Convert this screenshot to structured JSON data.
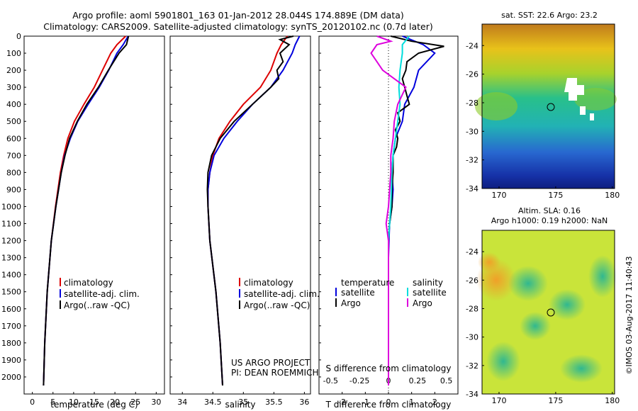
{
  "header": {
    "line1": "Argo profile: aoml 5901801_163 01-Jan-2012 28.044S 174.889E (DM data)",
    "line2": "Climatology: CARS2009. Satellite-adjusted climatology: synTS_20120102.nc (0.7d later)"
  },
  "colors": {
    "climatology": "#dd0000",
    "satellite": "#0000dd",
    "argo": "#000000",
    "sat_salinity": "#00dddd",
    "argo_salinity": "#dd00dd"
  },
  "legend": {
    "climatology": "climatology",
    "satellite": "satellite-adj. clim.",
    "argo": "Argo(..raw -QC)"
  },
  "legend3": {
    "temp_title": "temperature",
    "sal_title": "salinity",
    "satellite": "satellite",
    "argo": "Argo"
  },
  "credits": {
    "project": "US ARGO PROJECT",
    "pi": "PI: DEAN ROEMMICH",
    "imos": "©IMOS 03-Aug-2017 11:40:43"
  },
  "maps": {
    "sst_title": "sat. SST: 22.6 Argo: 23.2",
    "sla_title1": "Altim. SLA: 0.16",
    "sla_title2": "Argo h1000: 0.19 h2000: NaN",
    "yticks": [
      "-24",
      "-26",
      "-28",
      "-30",
      "-32",
      "-34"
    ],
    "xticks": [
      "170",
      "175",
      "180"
    ]
  },
  "chart_data": [
    {
      "type": "line",
      "xlabel": "temperature (deg C)",
      "xlim": [
        -2,
        32
      ],
      "ylim": [
        0,
        2100
      ],
      "xticks": [
        "0",
        "5",
        "10",
        "15",
        "20",
        "25",
        "30"
      ],
      "yticks": [
        "0",
        "100",
        "200",
        "300",
        "400",
        "500",
        "600",
        "700",
        "800",
        "900",
        "1000",
        "1100",
        "1200",
        "1300",
        "1400",
        "1500",
        "1600",
        "1700",
        "1800",
        "1900",
        "2000"
      ],
      "series": [
        {
          "name": "climatology",
          "depth": [
            0,
            50,
            100,
            200,
            300,
            400,
            500,
            600,
            700,
            800,
            1000,
            1200,
            1500,
            1800,
            2050
          ],
          "values": [
            22.6,
            20.5,
            19.0,
            17.0,
            15.0,
            12.5,
            10.2,
            8.6,
            7.6,
            6.8,
            5.6,
            4.6,
            3.6,
            3.0,
            2.7
          ]
        },
        {
          "name": "satellite-adj. clim.",
          "depth": [
            0,
            50,
            100,
            200,
            300,
            400,
            500,
            600,
            700,
            800,
            1000,
            1200,
            1500,
            1800,
            2050
          ],
          "values": [
            23.2,
            22.0,
            20.5,
            18.5,
            16.2,
            13.5,
            11.0,
            9.2,
            7.8,
            7.0,
            5.7,
            4.6,
            3.6,
            3.0,
            2.7
          ]
        },
        {
          "name": "Argo(..raw -QC)",
          "depth": [
            0,
            50,
            100,
            200,
            300,
            400,
            500,
            600,
            700,
            800,
            1000,
            1200,
            1500,
            1800,
            2050
          ],
          "values": [
            23.3,
            22.8,
            21.0,
            18.4,
            16.0,
            13.2,
            10.9,
            9.0,
            7.9,
            7.0,
            5.7,
            4.6,
            3.6,
            3.0,
            2.7
          ]
        }
      ]
    },
    {
      "type": "line",
      "xlabel": "salinity",
      "xlim": [
        33.8,
        36.1
      ],
      "ylim": [
        0,
        2100
      ],
      "xticks": [
        "34",
        "34.5",
        "35",
        "35.5",
        "36"
      ],
      "series": [
        {
          "name": "climatology",
          "depth": [
            0,
            50,
            100,
            200,
            300,
            400,
            500,
            600,
            700,
            800,
            900,
            1000,
            1200,
            1500,
            1800,
            2050
          ],
          "values": [
            35.72,
            35.62,
            35.55,
            35.45,
            35.28,
            35.0,
            34.78,
            34.6,
            34.5,
            34.45,
            34.42,
            34.42,
            34.45,
            34.55,
            34.62,
            34.66
          ]
        },
        {
          "name": "satellite-adj. clim.",
          "depth": [
            0,
            50,
            100,
            200,
            300,
            400,
            500,
            600,
            700,
            800,
            900,
            1000,
            1200,
            1500,
            1800,
            2050
          ],
          "values": [
            35.92,
            35.85,
            35.8,
            35.65,
            35.45,
            35.15,
            34.9,
            34.68,
            34.52,
            34.45,
            34.42,
            34.42,
            34.45,
            34.55,
            34.62,
            34.66
          ]
        },
        {
          "name": "Argo(..raw -QC)",
          "depth": [
            0,
            20,
            50,
            100,
            150,
            200,
            250,
            300,
            400,
            500,
            600,
            700,
            800,
            900,
            1000,
            1200,
            1500,
            1800,
            2050
          ],
          "values": [
            35.82,
            35.6,
            35.75,
            35.6,
            35.65,
            35.55,
            35.58,
            35.45,
            35.15,
            34.85,
            34.62,
            34.48,
            34.42,
            34.41,
            34.42,
            34.45,
            34.55,
            34.62,
            34.66
          ]
        }
      ]
    },
    {
      "type": "line",
      "xlabel": "T difference from climatology",
      "x2label": "S difference from climatology",
      "xlim": [
        -3,
        3
      ],
      "ylim": [
        0,
        2100
      ],
      "xticks": [
        "-2",
        "-1",
        "0",
        "1",
        "2"
      ],
      "x2ticks": [
        "-0.5",
        "-0.25",
        "0",
        "0.25",
        "0.5"
      ],
      "series": [
        {
          "name": "temperature satellite",
          "depth": [
            0,
            50,
            100,
            200,
            300,
            400,
            500,
            600,
            700,
            800,
            900,
            1000,
            1100,
            1200,
            1300,
            1500,
            1700,
            2050
          ],
          "values": [
            0.6,
            1.5,
            2.0,
            1.3,
            1.1,
            0.7,
            0.6,
            0.3,
            0.2,
            0.15,
            0.2,
            0.15,
            0.05,
            0.02,
            0.0,
            0.0,
            0.0,
            0.0
          ]
        },
        {
          "name": "temperature Argo",
          "depth": [
            0,
            30,
            60,
            100,
            150,
            200,
            250,
            300,
            350,
            400,
            450,
            500,
            550,
            600,
            650,
            700,
            800,
            900,
            1000,
            1100,
            1200,
            1300,
            1500,
            1700,
            2050
          ],
          "values": [
            0.1,
            1.0,
            2.4,
            1.3,
            0.8,
            0.75,
            0.6,
            0.7,
            0.8,
            0.9,
            0.4,
            0.5,
            0.3,
            0.4,
            0.35,
            0.2,
            0.2,
            0.15,
            0.15,
            0.05,
            0.0,
            0.0,
            0.0,
            0.0,
            0.0
          ]
        },
        {
          "name": "salinity satellite",
          "depth": [
            0,
            50,
            100,
            200,
            300,
            400,
            500,
            600,
            700,
            800,
            1000,
            1200,
            1500,
            1800,
            2050
          ],
          "values": [
            0.18,
            0.12,
            0.12,
            0.1,
            0.09,
            0.1,
            0.08,
            0.06,
            0.04,
            0.03,
            0.02,
            0.0,
            0.0,
            0.0,
            0.0
          ]
        },
        {
          "name": "salinity Argo",
          "depth": [
            0,
            30,
            50,
            100,
            150,
            200,
            300,
            400,
            500,
            600,
            700,
            800,
            1000,
            1100,
            1200,
            1500,
            1800,
            2050
          ],
          "values": [
            -0.1,
            0.02,
            -0.1,
            -0.15,
            -0.1,
            -0.05,
            0.15,
            0.08,
            0.05,
            0.04,
            0.02,
            0.02,
            0.0,
            -0.02,
            0.0,
            0.0,
            0.0,
            0.0
          ]
        }
      ]
    }
  ]
}
